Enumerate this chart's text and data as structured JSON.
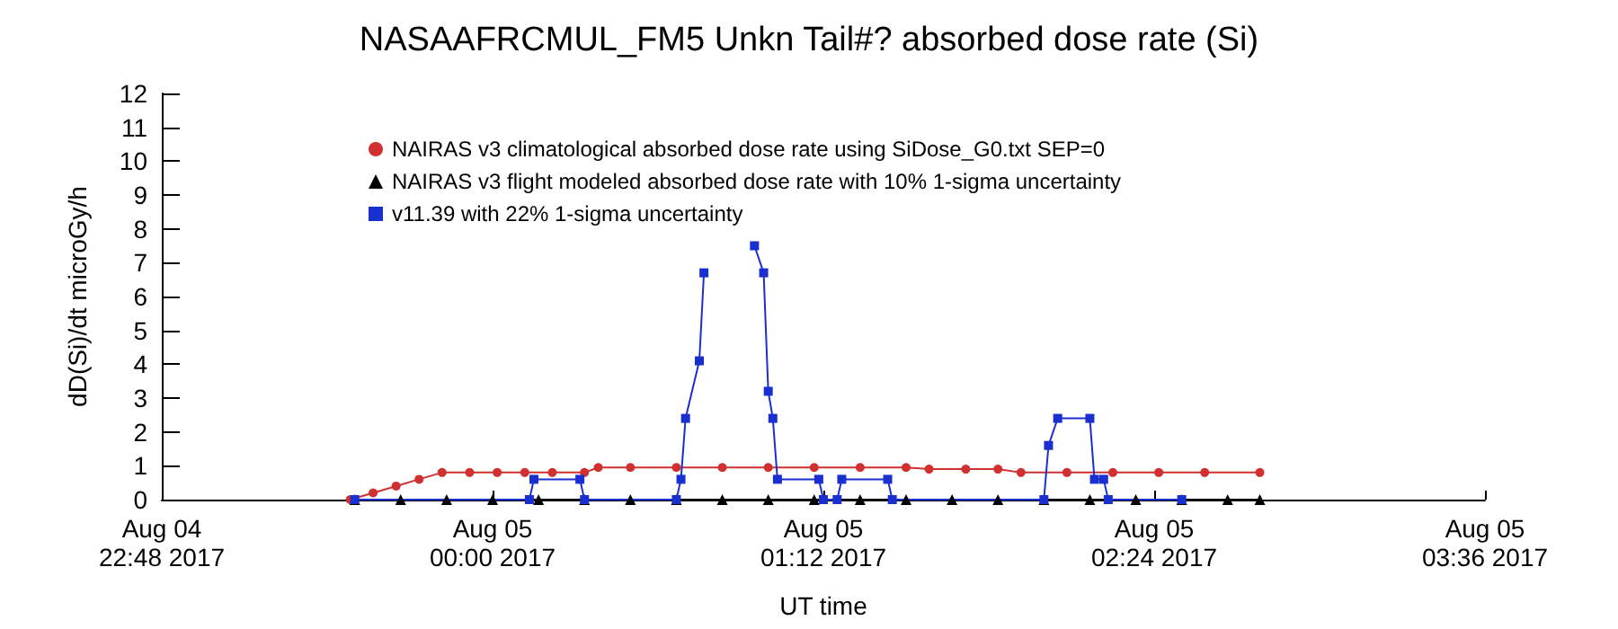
{
  "chart_data": {
    "type": "line",
    "title": "NASAAFRCMUL_FM5 Unkn Tail#? absorbed dose rate (Si)",
    "xlabel": "UT time",
    "ylabel": "dD(Si)/dt microGy/h",
    "xlim": [
      "2017-08-04T22:48",
      "2017-08-05T03:36"
    ],
    "xticks": [
      {
        "value": "2017-08-04T22:48",
        "label": "Aug 04\n22:48 2017"
      },
      {
        "value": "2017-08-05T00:00",
        "label": "Aug 05\n00:00 2017"
      },
      {
        "value": "2017-08-05T01:12",
        "label": "Aug 05\n01:12 2017"
      },
      {
        "value": "2017-08-05T02:24",
        "label": "Aug 05\n02:24 2017"
      },
      {
        "value": "2017-08-05T03:36",
        "label": "Aug 05\n03:36 2017"
      }
    ],
    "ylim": [
      0,
      12
    ],
    "yticks": [
      0,
      1,
      2,
      3,
      4,
      5,
      6,
      7,
      8,
      9,
      10,
      11,
      12
    ],
    "grid": false,
    "legend": "top",
    "series": [
      {
        "name": "NAIRAS v3 climatological absorbed dose rate using SiDose_G0.txt SEP=0",
        "color": "#d03030",
        "marker": "circle",
        "x": [
          "2017-08-04T23:29",
          "2017-08-04T23:34",
          "2017-08-04T23:39",
          "2017-08-04T23:44",
          "2017-08-04T23:49",
          "2017-08-04T23:55",
          "2017-08-05T00:01",
          "2017-08-05T00:07",
          "2017-08-05T00:13",
          "2017-08-05T00:20",
          "2017-08-05T00:23",
          "2017-08-05T00:30",
          "2017-08-05T00:40",
          "2017-08-05T00:50",
          "2017-08-05T01:00",
          "2017-08-05T01:10",
          "2017-08-05T01:20",
          "2017-08-05T01:30",
          "2017-08-05T01:35",
          "2017-08-05T01:43",
          "2017-08-05T01:50",
          "2017-08-05T01:55",
          "2017-08-05T02:05",
          "2017-08-05T02:15",
          "2017-08-05T02:25",
          "2017-08-05T02:35",
          "2017-08-05T02:47"
        ],
        "values": [
          0,
          0.2,
          0.4,
          0.6,
          0.8,
          0.8,
          0.8,
          0.8,
          0.8,
          0.8,
          0.95,
          0.95,
          0.95,
          0.95,
          0.95,
          0.95,
          0.95,
          0.95,
          0.9,
          0.9,
          0.9,
          0.8,
          0.8,
          0.8,
          0.8,
          0.8,
          0.8
        ]
      },
      {
        "name": "NAIRAS v3 flight modeled absorbed dose rate with 10% 1-sigma uncertainty",
        "color": "#000000",
        "marker": "triangle",
        "x": [
          "2017-08-04T23:30",
          "2017-08-04T23:40",
          "2017-08-04T23:50",
          "2017-08-05T00:00",
          "2017-08-05T00:10",
          "2017-08-05T00:20",
          "2017-08-05T00:30",
          "2017-08-05T00:40",
          "2017-08-05T00:50",
          "2017-08-05T01:00",
          "2017-08-05T01:10",
          "2017-08-05T01:20",
          "2017-08-05T01:30",
          "2017-08-05T01:40",
          "2017-08-05T01:50",
          "2017-08-05T02:00",
          "2017-08-05T02:10",
          "2017-08-05T02:20",
          "2017-08-05T02:30",
          "2017-08-05T02:40",
          "2017-08-05T02:47"
        ],
        "values": [
          0,
          0,
          0,
          0,
          0,
          0,
          0,
          0,
          0,
          0,
          0,
          0,
          0,
          0,
          0,
          0,
          0,
          0,
          0,
          0,
          0
        ]
      },
      {
        "name": "v11.39 with 22% 1-sigma uncertainty",
        "color": "#1a2fd0",
        "marker": "square",
        "x": [
          "2017-08-04T23:30",
          "2017-08-05T00:08",
          "2017-08-05T00:09",
          "2017-08-05T00:19",
          "2017-08-05T00:20",
          "2017-08-05T00:40",
          "2017-08-05T00:41",
          "2017-08-05T00:42",
          "2017-08-05T00:45",
          "2017-08-05T00:46",
          "2017-08-05T00:50",
          "2017-08-05T00:57",
          "2017-08-05T00:59",
          "2017-08-05T01:00",
          "2017-08-05T01:01",
          "2017-08-05T01:02",
          "2017-08-05T01:11",
          "2017-08-05T01:12",
          "2017-08-05T01:15",
          "2017-08-05T01:16",
          "2017-08-05T01:26",
          "2017-08-05T01:27",
          "2017-08-05T02:00",
          "2017-08-05T02:01",
          "2017-08-05T02:03",
          "2017-08-05T02:10",
          "2017-08-05T02:11",
          "2017-08-05T02:13",
          "2017-08-05T02:14",
          "2017-08-05T02:30"
        ],
        "values": [
          0,
          0,
          0.6,
          0.6,
          0,
          0,
          0.6,
          2.4,
          4.1,
          6.7,
          null,
          7.5,
          6.7,
          3.2,
          2.4,
          0.6,
          0.6,
          0,
          0,
          0.6,
          0.6,
          0,
          0,
          1.6,
          2.4,
          2.4,
          0.6,
          0.6,
          0,
          0
        ]
      }
    ]
  }
}
